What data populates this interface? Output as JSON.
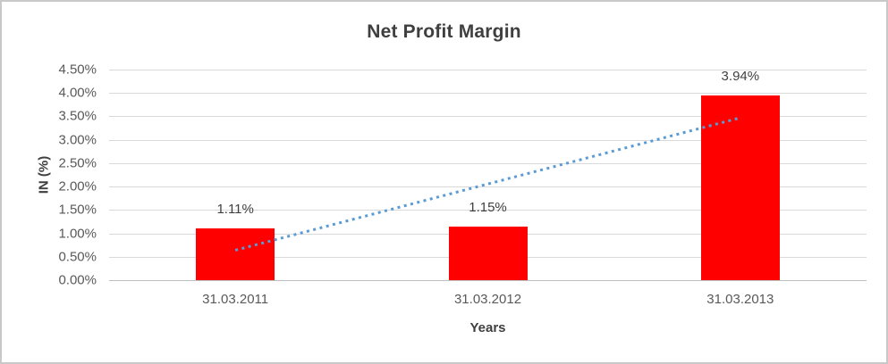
{
  "chart_data": {
    "type": "bar",
    "title": "Net Profit Margin",
    "xlabel": "Years",
    "ylabel": "IN (%)",
    "categories": [
      "31.03.2011",
      "31.03.2012",
      "31.03.2013"
    ],
    "values": [
      1.11,
      1.15,
      3.94
    ],
    "data_labels": [
      "1.11%",
      "1.15%",
      "3.94%"
    ],
    "ylim": [
      0,
      4.5
    ],
    "ytick_values": [
      0,
      0.5,
      1,
      1.5,
      2,
      2.5,
      3,
      3.5,
      4,
      4.5
    ],
    "ytick_labels": [
      "0.00%",
      "0.50%",
      "1.00%",
      "1.50%",
      "2.00%",
      "2.50%",
      "3.00%",
      "3.50%",
      "4.00%",
      "4.50%"
    ],
    "grid": true,
    "legend": "none",
    "bar_color": "#FF0000",
    "gridline_color": "#D9D9D9",
    "axis_line_color": "#BFBFBF",
    "tick_label_color": "#595959",
    "title_color": "#3F3F3F",
    "trendline": {
      "type": "linear",
      "style": "dotted",
      "color": "#5B9BD5",
      "start_value": 0.64,
      "end_value": 3.47
    }
  }
}
